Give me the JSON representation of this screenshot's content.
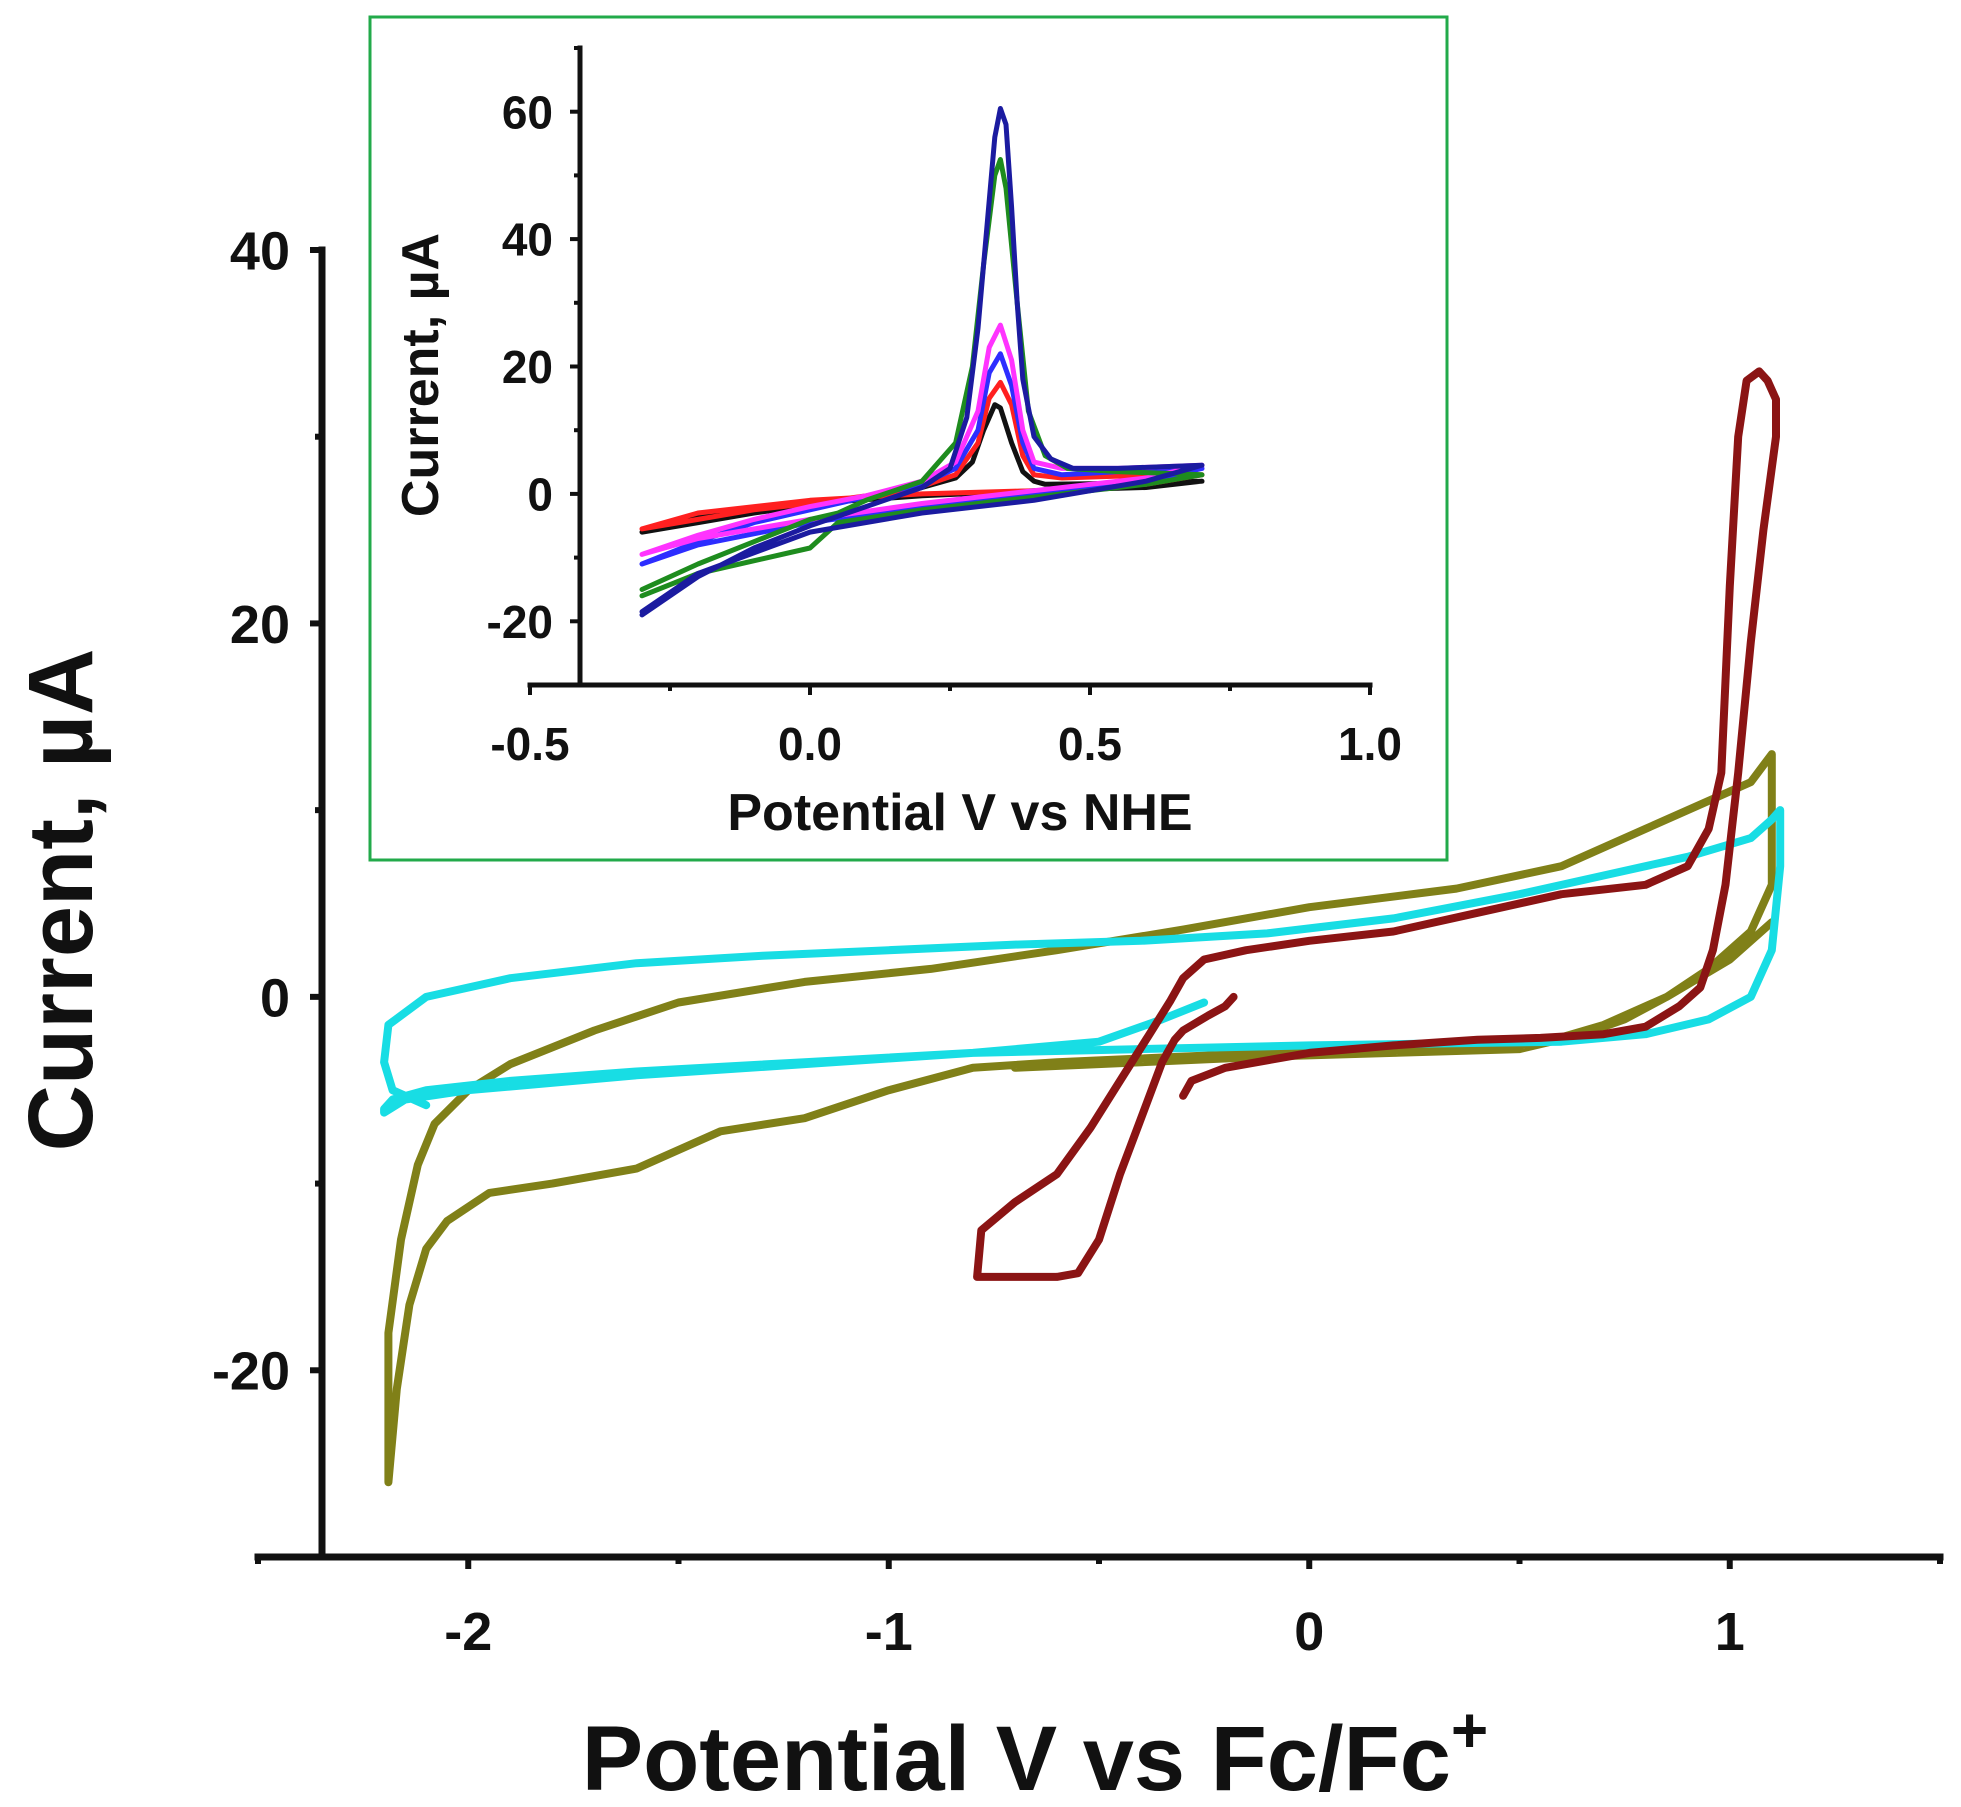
{
  "chart_data": [
    {
      "id": "main",
      "type": "line",
      "xlabel": "Potential V vs Fc/Fc",
      "xlabel_superscript": "+",
      "ylabel": "Current, µA",
      "xlim": [
        -2.5,
        1.5
      ],
      "ylim": [
        -30,
        40
      ],
      "xticks": [
        -2,
        -1,
        0,
        1
      ],
      "xtick_labels": [
        "-2",
        "-1",
        "0",
        "1"
      ],
      "yticks": [
        -20,
        0,
        20,
        40
      ],
      "ytick_labels": [
        "-20",
        "0",
        "20",
        "40"
      ],
      "series": [
        {
          "name": "olive",
          "color": "#808018",
          "x": [
            -0.7,
            -0.4,
            -0.1,
            0.2,
            0.5,
            0.65,
            0.75,
            0.85,
            0.95,
            1.05,
            1.1,
            1.1,
            1.05,
            0.95,
            0.8,
            0.6,
            0.35,
            0.0,
            -0.3,
            -0.6,
            -0.9,
            -1.2,
            -1.5,
            -1.7,
            -1.9,
            -2.0,
            -2.08,
            -2.12,
            -2.16,
            -2.19,
            -2.19,
            -2.17,
            -2.14,
            -2.1,
            -2.05,
            -1.95,
            -1.8,
            -1.6,
            -1.4,
            -1.2,
            -1.0,
            -0.8,
            -0.6,
            -0.4,
            -0.2,
            0.0,
            0.2,
            0.4,
            0.55,
            0.7,
            0.85,
            1.0,
            1.1
          ],
          "y": [
            -3.8,
            -3.5,
            -3.2,
            -3.0,
            -2.8,
            -2.0,
            -1.2,
            0.0,
            1.5,
            3.5,
            6.0,
            13.0,
            11.5,
            10.5,
            9.0,
            7.0,
            5.8,
            4.8,
            3.6,
            2.5,
            1.5,
            0.8,
            -0.3,
            -1.8,
            -3.6,
            -5.0,
            -6.8,
            -9.0,
            -13.0,
            -18.0,
            -26.0,
            -21.0,
            -16.5,
            -13.5,
            -12.0,
            -10.5,
            -10.0,
            -9.2,
            -7.2,
            -6.5,
            -5.0,
            -3.8,
            -3.5,
            -3.3,
            -3.1,
            -3.0,
            -2.9,
            -2.7,
            -2.5,
            -1.5,
            0.0,
            2.0,
            4.0
          ]
        },
        {
          "name": "cyan",
          "color": "#18dde4",
          "x": [
            -0.25,
            -0.35,
            -0.5,
            -0.8,
            -1.2,
            -1.6,
            -2.0,
            -2.15,
            -2.2,
            -2.2,
            -2.18,
            -2.1,
            -1.9,
            -1.6,
            -1.2,
            -0.8,
            -0.4,
            0.0,
            0.3,
            0.6,
            0.8,
            0.95,
            1.05,
            1.1,
            1.12,
            1.12,
            1.1,
            1.05,
            0.9,
            0.7,
            0.5,
            0.2,
            -0.1,
            -0.4,
            -0.7,
            -1.0,
            -1.3,
            -1.6,
            -1.9,
            -2.1,
            -2.19,
            -2.2,
            -2.18,
            -2.1
          ],
          "y": [
            -0.3,
            -1.2,
            -2.4,
            -3.0,
            -3.6,
            -4.2,
            -5.0,
            -5.5,
            -6.2,
            -6.0,
            -5.5,
            -5.0,
            -4.5,
            -4.0,
            -3.5,
            -3.0,
            -2.8,
            -2.6,
            -2.5,
            -2.4,
            -2.0,
            -1.2,
            0.0,
            2.5,
            7.0,
            10.0,
            9.5,
            8.5,
            7.5,
            6.5,
            5.5,
            4.2,
            3.4,
            3.0,
            2.8,
            2.5,
            2.2,
            1.8,
            1.0,
            0.0,
            -1.5,
            -3.5,
            -5.0,
            -5.8
          ]
        },
        {
          "name": "dark-red",
          "color": "#8b1414",
          "x": [
            -0.3,
            -0.28,
            -0.2,
            0.0,
            0.2,
            0.4,
            0.55,
            0.7,
            0.8,
            0.88,
            0.93,
            0.96,
            0.99,
            1.02,
            1.05,
            1.08,
            1.11,
            1.11,
            1.09,
            1.07,
            1.04,
            1.02,
            1.0,
            0.98,
            0.95,
            0.9,
            0.8,
            0.6,
            0.4,
            0.2,
            0.0,
            -0.15,
            -0.25,
            -0.3,
            -0.33,
            -0.38,
            -0.45,
            -0.52,
            -0.6,
            -0.7,
            -0.78,
            -0.79,
            -0.7,
            -0.6,
            -0.55,
            -0.5,
            -0.45,
            -0.4,
            -0.35,
            -0.32,
            -0.3,
            -0.27,
            -0.24,
            -0.2,
            -0.18
          ],
          "y": [
            -5.3,
            -4.5,
            -3.8,
            -3.0,
            -2.6,
            -2.3,
            -2.2,
            -2.0,
            -1.6,
            -0.5,
            0.5,
            2.5,
            6.0,
            12.0,
            19.0,
            25.0,
            30.0,
            32.0,
            33.0,
            33.5,
            33.0,
            30.0,
            22.0,
            12.0,
            9.0,
            7.0,
            6.0,
            5.5,
            4.5,
            3.5,
            3.0,
            2.5,
            2.0,
            1.0,
            -0.2,
            -2.0,
            -4.5,
            -7.0,
            -9.5,
            -11.0,
            -12.5,
            -15.0,
            -15.0,
            -15.0,
            -14.8,
            -13.0,
            -9.5,
            -6.5,
            -3.5,
            -2.3,
            -1.8,
            -1.4,
            -1.0,
            -0.5,
            0.0
          ]
        }
      ]
    },
    {
      "id": "inset",
      "type": "line",
      "xlabel": "Potential V vs NHE",
      "ylabel": "Current, µA",
      "xlim": [
        -0.5,
        1.0
      ],
      "ylim": [
        -30,
        70
      ],
      "xticks": [
        -0.5,
        0.0,
        0.5,
        1.0
      ],
      "xtick_labels": [
        "-0.5",
        "0.0",
        "0.5",
        "1.0"
      ],
      "yticks": [
        -20,
        0,
        20,
        40,
        60
      ],
      "ytick_labels": [
        "-20",
        "0",
        "20",
        "40",
        "60"
      ],
      "series": [
        {
          "name": "black",
          "color": "#111111",
          "x": [
            -0.3,
            -0.2,
            -0.1,
            0.0,
            0.1,
            0.2,
            0.26,
            0.29,
            0.31,
            0.33,
            0.34,
            0.36,
            0.38,
            0.4,
            0.42,
            0.5,
            0.6,
            0.7,
            0.6,
            0.4,
            0.2,
            0.0,
            -0.2,
            -0.3
          ],
          "y": [
            -6.0,
            -4.5,
            -3.0,
            -1.8,
            -0.5,
            1.0,
            2.5,
            5.0,
            10.0,
            14.0,
            13.5,
            8.0,
            3.5,
            2.0,
            1.5,
            1.6,
            1.8,
            2.0,
            1.0,
            0.5,
            -0.3,
            -1.5,
            -3.5,
            -6.0
          ]
        },
        {
          "name": "red",
          "color": "#ff2020",
          "x": [
            -0.3,
            -0.2,
            -0.1,
            0.0,
            0.1,
            0.2,
            0.26,
            0.3,
            0.32,
            0.34,
            0.36,
            0.38,
            0.4,
            0.45,
            0.55,
            0.7,
            0.6,
            0.4,
            0.2,
            0.0,
            -0.2,
            -0.3
          ],
          "y": [
            -5.5,
            -4.0,
            -2.5,
            -1.5,
            -0.3,
            1.2,
            3.0,
            8.0,
            15.0,
            17.5,
            14.0,
            6.0,
            3.0,
            2.5,
            2.8,
            3.0,
            1.5,
            0.5,
            0.0,
            -1.0,
            -3.0,
            -5.5
          ]
        },
        {
          "name": "blue",
          "color": "#2d2dff",
          "x": [
            -0.3,
            -0.2,
            -0.1,
            0.0,
            0.1,
            0.2,
            0.26,
            0.3,
            0.32,
            0.34,
            0.36,
            0.38,
            0.4,
            0.45,
            0.55,
            0.7,
            0.6,
            0.4,
            0.2,
            0.0,
            -0.2,
            -0.3
          ],
          "y": [
            -11.0,
            -7.5,
            -4.5,
            -2.5,
            -0.5,
            1.5,
            4.0,
            10.0,
            19.0,
            22.0,
            17.0,
            8.0,
            4.0,
            3.0,
            3.5,
            4.0,
            2.0,
            0.0,
            -2.0,
            -4.5,
            -8.0,
            -11.0
          ]
        },
        {
          "name": "magenta",
          "color": "#ff33ff",
          "x": [
            -0.3,
            -0.2,
            -0.1,
            0.0,
            0.1,
            0.2,
            0.26,
            0.3,
            0.32,
            0.34,
            0.36,
            0.38,
            0.4,
            0.45,
            0.55,
            0.7,
            0.6,
            0.4,
            0.2,
            0.0,
            -0.2,
            -0.3
          ],
          "y": [
            -9.5,
            -6.5,
            -4.0,
            -2.0,
            -0.3,
            2.0,
            5.0,
            13.0,
            23.0,
            26.5,
            21.0,
            10.0,
            5.0,
            4.0,
            4.0,
            4.5,
            2.5,
            0.5,
            -1.5,
            -4.0,
            -7.0,
            -9.5
          ]
        },
        {
          "name": "green",
          "color": "#1e8c1e",
          "x": [
            -0.3,
            -0.2,
            -0.1,
            0.0,
            0.05,
            0.1,
            0.2,
            0.26,
            0.29,
            0.31,
            0.33,
            0.34,
            0.35,
            0.37,
            0.39,
            0.42,
            0.46,
            0.55,
            0.7,
            0.6,
            0.4,
            0.2,
            0.05,
            0.0,
            -0.2,
            -0.3
          ],
          "y": [
            -15.0,
            -11.0,
            -7.5,
            -4.0,
            -3.0,
            -1.0,
            2.0,
            8.0,
            20.0,
            36.0,
            50.0,
            52.5,
            48.0,
            30.0,
            13.0,
            6.0,
            4.0,
            3.5,
            3.0,
            1.5,
            -0.5,
            -2.5,
            -4.5,
            -8.5,
            -12.5,
            -16.0
          ]
        },
        {
          "name": "navy",
          "color": "#1b1ba0",
          "x": [
            -0.3,
            -0.2,
            -0.1,
            0.0,
            0.1,
            0.2,
            0.25,
            0.28,
            0.3,
            0.32,
            0.33,
            0.34,
            0.35,
            0.36,
            0.37,
            0.38,
            0.4,
            0.43,
            0.47,
            0.55,
            0.7,
            0.6,
            0.4,
            0.2,
            0.0,
            -0.2,
            -0.3
          ],
          "y": [
            -19.0,
            -13.0,
            -8.5,
            -5.0,
            -2.0,
            1.0,
            4.0,
            12.0,
            26.0,
            46.0,
            56.0,
            60.5,
            58.0,
            45.0,
            30.0,
            18.0,
            9.0,
            5.5,
            4.0,
            4.0,
            4.5,
            2.0,
            -1.0,
            -3.0,
            -6.0,
            -12.5,
            -18.5
          ]
        }
      ]
    }
  ]
}
